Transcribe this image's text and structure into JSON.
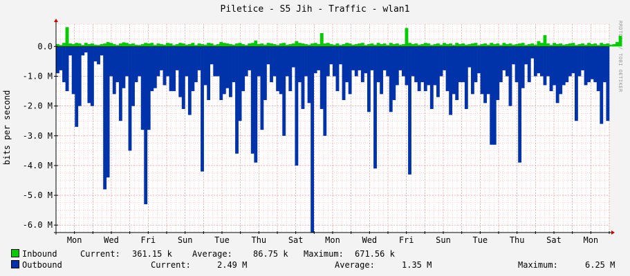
{
  "title": "Piletice - S5 Jih - Traffic - wlan1",
  "watermark": "RRDTOOL / TOBI OETIKER",
  "colors": {
    "inbound": "#00cc00",
    "outbound": "#0033aa",
    "grid": "#ff9999",
    "major": "#cc9999"
  },
  "legend": {
    "inbound": {
      "name": "Inbound",
      "current_label": "Current:",
      "current": "361.15 k",
      "average_label": "Average:",
      "average": "86.75 k",
      "maximum_label": "Maximum:",
      "maximum": "671.56 k"
    },
    "outbound": {
      "name": "Outbound",
      "current_label": "Current:",
      "current": "2.49 M",
      "average_label": "Average:",
      "average": "1.35 M",
      "maximum_label": "Maximum:",
      "maximum": "6.25 M"
    }
  },
  "chart_data": {
    "type": "area",
    "ylabel": "bits per second",
    "ylim": [
      -6.25,
      0.75
    ],
    "unit": "M",
    "y_ticks": [
      "0.0",
      "-1.0 M",
      "-2.0 M",
      "-3.0 M",
      "-4.0 M",
      "-5.0 M",
      "-6.0 M"
    ],
    "y_tick_values": [
      0,
      -1,
      -2,
      -3,
      -4,
      -5,
      -6
    ],
    "x_labels": [
      "Mon",
      "Wed",
      "Fri",
      "Sun",
      "Tue",
      "Thu",
      "Sat",
      "Mon",
      "Wed",
      "Fri",
      "Sun",
      "Tue",
      "Thu",
      "Sat",
      "Mon"
    ],
    "x_range": [
      0,
      30
    ],
    "x_label_positions": [
      1,
      3,
      5,
      7,
      9,
      11,
      13,
      15,
      17,
      19,
      21,
      23,
      25,
      27,
      29
    ],
    "grid": true,
    "legend_position": "bottom-left",
    "series": [
      {
        "name": "Inbound",
        "values": [
          0.08,
          0.05,
          0.12,
          0.65,
          0.1,
          0.08,
          0.12,
          0.1,
          0.05,
          0.12,
          0.08,
          0.1,
          0.06,
          0.05,
          0.08,
          0.1,
          0.15,
          0.12,
          0.08,
          0.05,
          0.1,
          0.14,
          0.12,
          0.08,
          0.1,
          0.06,
          0.05,
          0.08,
          0.12,
          0.1,
          0.12,
          0.05,
          0.1,
          0.08,
          0.06,
          0.12,
          0.1,
          0.05,
          0.08,
          0.12,
          0.1,
          0.06,
          0.08,
          0.12,
          0.05,
          0.1,
          0.08,
          0.06,
          0.12,
          0.1,
          0.05,
          0.08,
          0.15,
          0.12,
          0.1,
          0.08,
          0.06,
          0.1,
          0.12,
          0.08,
          0.05,
          0.1,
          0.12,
          0.2,
          0.08,
          0.1,
          0.06,
          0.12,
          0.1,
          0.08,
          0.05,
          0.1,
          0.12,
          0.06,
          0.08,
          0.1,
          0.18,
          0.12,
          0.1,
          0.08,
          0.06,
          0.1,
          0.12,
          0.08,
          0.45,
          0.1,
          0.12,
          0.08,
          0.06,
          0.1,
          0.05,
          0.08,
          0.12,
          0.1,
          0.06,
          0.08,
          0.1,
          0.12,
          0.05,
          0.08,
          0.1,
          0.06,
          0.12,
          0.08,
          0.1,
          0.05,
          0.12,
          0.08,
          0.1,
          0.06,
          0.08,
          0.62,
          0.12,
          0.08,
          0.1,
          0.06,
          0.08,
          0.12,
          0.1,
          0.05,
          0.08,
          0.1,
          0.06,
          0.12,
          0.08,
          0.1,
          0.05,
          0.12,
          0.08,
          0.1,
          0.06,
          0.08,
          0.1,
          0.12,
          0.05,
          0.08,
          0.1,
          0.06,
          0.12,
          0.08,
          0.1,
          0.05,
          0.12,
          0.08,
          0.1,
          0.06,
          0.08,
          0.1,
          0.12,
          0.05,
          0.08,
          0.1,
          0.06,
          0.18,
          0.12,
          0.38,
          0.1,
          0.05,
          0.12,
          0.08,
          0.1,
          0.06,
          0.08,
          0.1,
          0.12,
          0.05,
          0.08,
          0.1,
          0.06,
          0.12,
          0.08,
          0.1,
          0.05,
          0.12,
          0.08,
          0.1,
          0.06,
          0.08,
          0.15,
          0.36
        ]
      },
      {
        "name": "Outbound",
        "values": [
          -0.9,
          -0.8,
          -1.2,
          -1.5,
          -0.3,
          -1.6,
          -2.7,
          -2.0,
          -0.3,
          -0.2,
          -1.9,
          -2.0,
          -0.5,
          -0.6,
          -0.3,
          -4.8,
          -4.4,
          -1.0,
          -1.6,
          -1.2,
          -2.5,
          -1.4,
          -1.0,
          -3.5,
          -2.0,
          -1.2,
          -1.0,
          -2.8,
          -5.3,
          -2.8,
          -1.5,
          -1.4,
          -1.0,
          -0.8,
          -1.3,
          -1.0,
          -1.5,
          -1.5,
          -0.8,
          -1.7,
          -2.1,
          -1.0,
          -2.3,
          -1.5,
          -1.2,
          -0.8,
          -4.2,
          -1.3,
          -1.8,
          -0.6,
          -1.0,
          -1.0,
          -1.8,
          -1.6,
          -1.4,
          -1.7,
          -1.2,
          -3.6,
          -2.5,
          -1.5,
          -1.0,
          -0.8,
          -3.6,
          -3.9,
          -1.0,
          -2.8,
          -1.8,
          -0.6,
          -1.2,
          -1.0,
          -1.5,
          -1.6,
          -3.0,
          -1.0,
          -1.5,
          -0.7,
          -4.0,
          -1.2,
          -2.1,
          -1.0,
          -1.9,
          -6.25,
          -0.9,
          -0.8,
          -2.1,
          -3.0,
          -1.0,
          -0.6,
          -1.0,
          -1.5,
          -0.6,
          -1.8,
          -1.2,
          -1.6,
          -0.8,
          -1.0,
          -0.8,
          -1.2,
          -0.9,
          -2.2,
          -0.8,
          -4.1,
          -1.2,
          -1.6,
          -0.8,
          -1.0,
          -2.2,
          -1.8,
          -1.3,
          -0.8,
          -1.0,
          -1.3,
          -4.3,
          -1.0,
          -1.2,
          -1.5,
          -1.2,
          -1.5,
          -1.3,
          -2.1,
          -1.3,
          -1.7,
          -1.0,
          -0.8,
          -1.5,
          -2.3,
          -1.6,
          -1.8,
          -1.2,
          -1.2,
          -2.1,
          -0.7,
          -1.6,
          -1.2,
          -0.9,
          -1.6,
          -1.9,
          -1.6,
          -3.3,
          -3.3,
          -1.8,
          -1.2,
          -0.8,
          -1.0,
          -2.0,
          -0.6,
          -1.2,
          -3.9,
          -1.4,
          -0.6,
          -1.2,
          -0.4,
          -1.0,
          -0.9,
          -1.0,
          -1.3,
          -1.0,
          -1.5,
          -1.3,
          -1.9,
          -1.6,
          -1.3,
          -1.2,
          -1.0,
          -0.9,
          -2.5,
          -1.0,
          -0.8,
          -1.3,
          -1.2,
          -1.1,
          -1.2,
          -1.5,
          -2.6,
          -1.2,
          -2.5
        ]
      }
    ]
  }
}
